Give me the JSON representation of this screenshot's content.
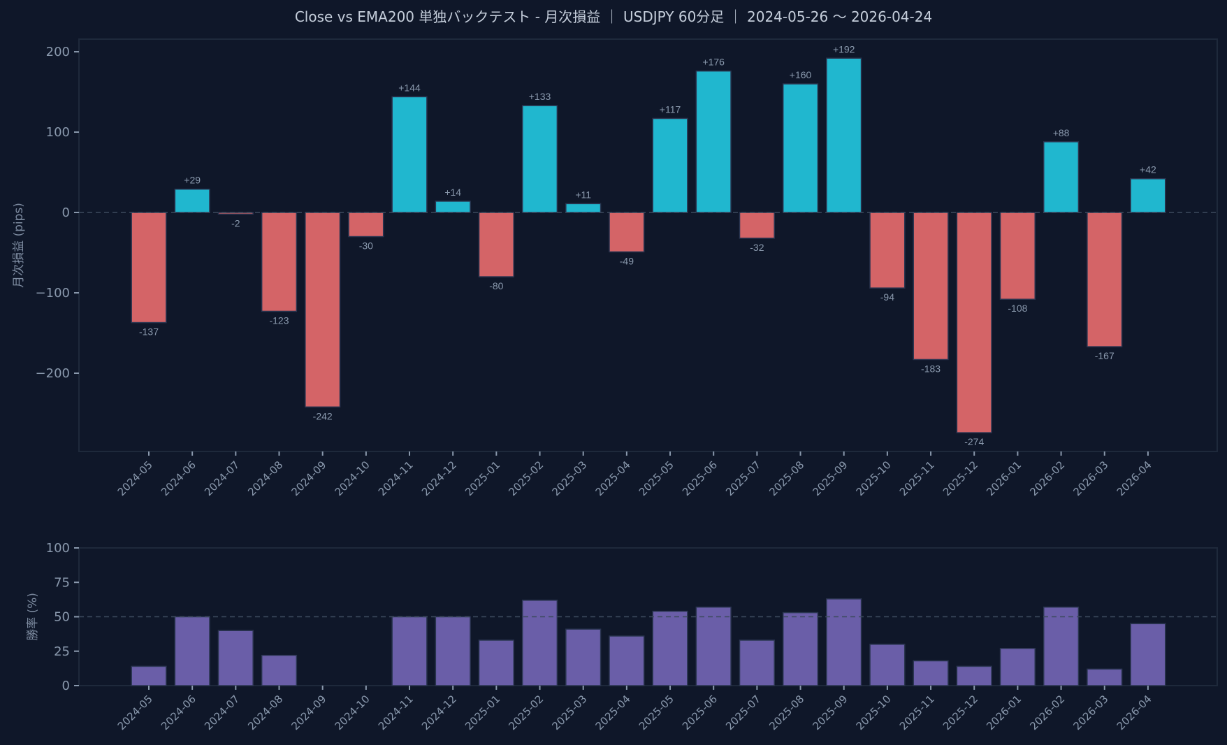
{
  "title": "Close vs EMA200 単独バックテスト - 月次損益 ｜ USDJPY 60分足 ｜ 2024-05-26 〜 2026-04-24",
  "colors": {
    "background": "#0f1729",
    "frame": "#1e293b",
    "text": "#8a99ad",
    "positive": "#20b7cf",
    "negative": "#d46467",
    "winrate": "#6a5ea8",
    "bar_edge": "#2a3550",
    "reference_line": "#3d4a5e"
  },
  "chart_data": [
    {
      "type": "bar",
      "title": "Close vs EMA200 単独バックテスト - 月次損益 ｜ USDJPY 60分足 ｜ 2024-05-26 〜 2026-04-24",
      "xlabel": "",
      "ylabel": "月次損益 (pips)",
      "categories": [
        "2024-05",
        "2024-06",
        "2024-07",
        "2024-08",
        "2024-09",
        "2024-10",
        "2024-11",
        "2024-12",
        "2025-01",
        "2025-02",
        "2025-03",
        "2025-04",
        "2025-05",
        "2025-06",
        "2025-07",
        "2025-08",
        "2025-09",
        "2025-10",
        "2025-11",
        "2025-12",
        "2026-01",
        "2026-02",
        "2026-03",
        "2026-04"
      ],
      "values": [
        -137,
        29,
        -2,
        -123,
        -242,
        -30,
        144,
        14,
        -80,
        133,
        11,
        -49,
        117,
        176,
        -32,
        160,
        192,
        -94,
        -183,
        -274,
        -108,
        88,
        -167,
        42
      ],
      "labels": [
        "-137",
        "+29",
        "-2",
        "-123",
        "-242",
        "-30",
        "+144",
        "+14",
        "-80",
        "+133",
        "+11",
        "-49",
        "+117",
        "+176",
        "-32",
        "+160",
        "+192",
        "-94",
        "-183",
        "-274",
        "-108",
        "+88",
        "-167",
        "+42"
      ],
      "yticks": [
        200,
        100,
        0,
        -100,
        -200
      ],
      "ytick_labels": [
        "200",
        "100",
        "0",
        "−100",
        "−200"
      ],
      "ylim": [
        -297.4,
        215.7
      ],
      "reference_line": 0,
      "grid": false,
      "legend": null
    },
    {
      "type": "bar",
      "title": "",
      "xlabel": "",
      "ylabel": "勝率 (%)",
      "categories": [
        "2024-05",
        "2024-06",
        "2024-07",
        "2024-08",
        "2024-09",
        "2024-10",
        "2024-11",
        "2024-12",
        "2025-01",
        "2025-02",
        "2025-03",
        "2025-04",
        "2025-05",
        "2025-06",
        "2025-07",
        "2025-08",
        "2025-09",
        "2025-10",
        "2025-11",
        "2025-12",
        "2026-01",
        "2026-02",
        "2026-03",
        "2026-04"
      ],
      "values": [
        14,
        50,
        40,
        22,
        0,
        0,
        50,
        50,
        33,
        62,
        41,
        36,
        54,
        57,
        33,
        53,
        63,
        30,
        18,
        14,
        27,
        57,
        12,
        45
      ],
      "yticks": [
        100,
        75,
        50,
        25,
        0
      ],
      "ytick_labels": [
        "100",
        "75",
        "50",
        "25",
        "0"
      ],
      "ylim": [
        0,
        100
      ],
      "reference_line": 50,
      "grid": false,
      "legend": null
    }
  ]
}
